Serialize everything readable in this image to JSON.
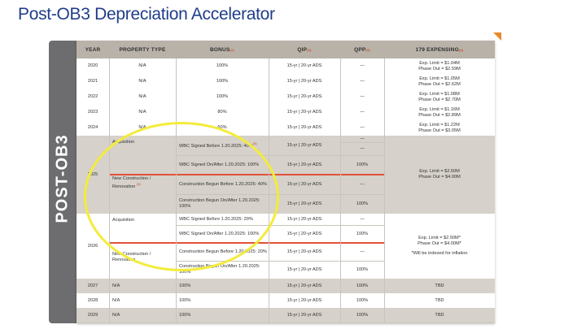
{
  "title": "Post-OB3 Depreciation Accelerator",
  "side_label": "POST-OB3",
  "headers": {
    "year": "YEAR",
    "property_type": "PROPERTY TYPE",
    "bonus": "BONUS",
    "bonus_sup": "(1)",
    "qip": "QIP",
    "qip_sup": "(2)",
    "qpp": "QPP",
    "qpp_sup": "(3)",
    "expensing": "179 EXPENSING",
    "expensing_sup": "(4)"
  },
  "simple_rows": [
    {
      "year": "2020",
      "type": "N/A",
      "bonus": "100%",
      "qip": "15-yr | 20-yr ADS",
      "qpp": "—",
      "exp1": "Exp. Limit = $1.04M",
      "exp2": "Phase Out = $2.59M"
    },
    {
      "year": "2021",
      "type": "N/A",
      "bonus": "100%",
      "qip": "15-yr | 20-yr ADS",
      "qpp": "—",
      "exp1": "Exp. Limit = $1.05M",
      "exp2": "Phase Out = $2.62M"
    },
    {
      "year": "2022",
      "type": "N/A",
      "bonus": "100%",
      "qip": "15-yr | 20-yr ADS",
      "qpp": "—",
      "exp1": "Exp. Limit = $1.08M",
      "exp2": "Phase Out = $2.70M"
    },
    {
      "year": "2023",
      "type": "N/A",
      "bonus": "80%",
      "qip": "15-yr | 20-yr ADS",
      "qpp": "—",
      "exp1": "Exp. Limit = $1.16M",
      "exp2": "Phase Out = $2.89M"
    },
    {
      "year": "2024",
      "type": "N/A",
      "bonus": "60%",
      "qip": "15-yr | 20-yr ADS",
      "qpp": "—",
      "exp1": "Exp. Limit = $1.22M",
      "exp2": "Phase Out = $3.05M"
    }
  ],
  "y2025": {
    "year": "2025",
    "type_acq": "Acquisition",
    "type_new": "New Construction / Renovation",
    "type_new_sup": "(5)",
    "bonus": [
      "WBC Signed Before 1.20.2025: 40%",
      "WBC Signed On/After 1.20.2025: 100%",
      "Construction Begun Before 1.20.2025: 40%",
      "Construction Begun On/After 1.20.2025: 100%"
    ],
    "bonus_sup": "(6)",
    "qip": [
      "15-yr | 20-yr ADS",
      "15-yr | 20-yr ADS",
      "15-yr | 20-yr ADS",
      "15-yr | 20-yr ADS"
    ],
    "qpp": [
      "—",
      "100%",
      "—",
      "100%"
    ],
    "qpp_top": "—",
    "exp1": "Exp. Limit = $2.50M",
    "exp2": "Phase Out = $4.00M"
  },
  "y2026": {
    "year": "2026",
    "type_acq": "Acquisition",
    "type_new": "New Construction / Renovation",
    "bonus": [
      "WBC Signed Before 1.20.2025: 20%",
      "WBC Signed On/After 1.20.2025: 100%",
      "Construction Begun Before 1.20.2025: 20%",
      "Construction Begun On/After 1.20.2025: 100%"
    ],
    "qip": [
      "15-yr | 20-yr ADS",
      "15-yr | 20-yr ADS",
      "15-yr | 20-yr ADS",
      "15-yr | 20-yr ADS"
    ],
    "qpp": [
      "—",
      "100%",
      "—",
      "100%"
    ],
    "exp1": "Exp. Limit = $2.50M*",
    "exp2": "Phase Out = $4.00M*",
    "exp_note": "*Will be indexed for inflation"
  },
  "tail_rows": [
    {
      "year": "2027",
      "type": "N/A",
      "bonus": "100%",
      "qip": "15-yr | 20-yr ADS",
      "qpp": "100%",
      "exp": "TBD"
    },
    {
      "year": "2028",
      "type": "N/A",
      "bonus": "100%",
      "qip": "15-yr | 20-yr ADS",
      "qpp": "100%",
      "exp": "TBD"
    },
    {
      "year": "2029",
      "type": "N/A",
      "bonus": "100%",
      "qip": "15-yr | 20-yr ADS",
      "qpp": "100%",
      "exp": "TBD"
    }
  ],
  "colors": {
    "title": "#1f3d8a",
    "header": "#b9b2a8",
    "band": "#6d6d6f",
    "highlight_circle": "#f3ec3b",
    "divider": "#e2513b",
    "corner_mark": "#e8892b"
  }
}
